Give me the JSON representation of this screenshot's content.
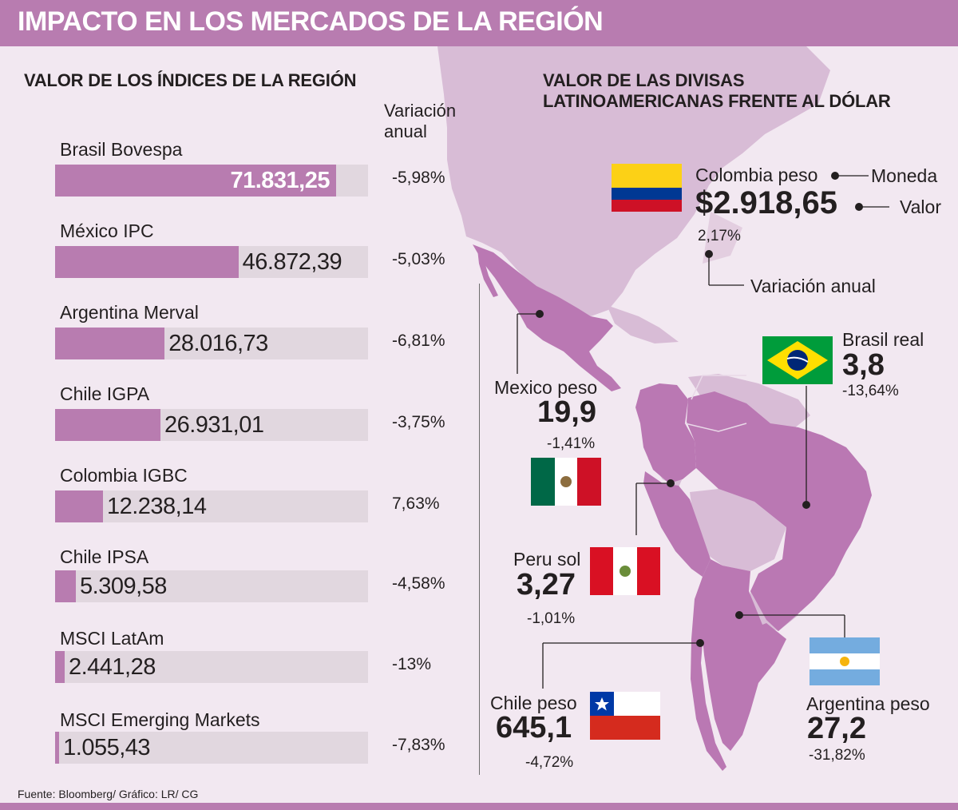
{
  "title": "IMPACTO EN LOS MERCADOS DE LA REGIÓN",
  "indices_section_title": "VALOR DE LOS ÍNDICES DE LA REGIÓN",
  "variation_header": [
    "Variación",
    "anual"
  ],
  "currencies_section_title": [
    "VALOR DE LAS DIVISAS",
    "LATINOAMERICANAS FRENTE AL DÓLAR"
  ],
  "source": "Fuente: Bloomberg/ Gráfico: LR/ CG",
  "colors": {
    "accent": "#b87cb0",
    "bar_track": "#e1d7df",
    "background": "#f2e8f1",
    "map_land": "#d8bcd6",
    "map_highlight": "#ba78b3"
  },
  "chart_data": [
    {
      "type": "bar",
      "orientation": "horizontal",
      "title": "VALOR DE LOS ÍNDICES DE LA REGIÓN",
      "categories": [
        "Brasil Bovespa",
        "México IPC",
        "Argentina Merval",
        "Chile IGPA",
        "Colombia IGBC",
        "Chile IPSA",
        "MSCI LatAm",
        "MSCI Emerging Markets"
      ],
      "values": [
        71831.25,
        46872.39,
        28016.73,
        26931.01,
        12238.14,
        5309.58,
        2441.28,
        1055.43
      ],
      "value_labels": [
        "71.831,25",
        "46.872,39",
        "28.016,73",
        "26.931,01",
        "12.238,14",
        "5.309,58",
        "2.441,28",
        "1.055,43"
      ],
      "annual_variation": [
        "-5,98%",
        "-5,03%",
        "-6,81%",
        "-3,75%",
        "7,63%",
        "-4,58%",
        "-13%",
        "-7,83%"
      ],
      "xlim": [
        0,
        80000
      ],
      "grid": false
    },
    {
      "type": "table",
      "title": [
        "VALOR DE LAS DIVISAS",
        "LATINOAMERICANAS FRENTE AL DÓLAR"
      ],
      "legend": {
        "currency": "Moneda",
        "value": "Valor",
        "variation": "Variación anual"
      },
      "rows": [
        {
          "currency": "Colombia peso",
          "value": "$2.918,65",
          "variation": "2,17%",
          "flag": "colombia-flag"
        },
        {
          "currency": "Brasil real",
          "value": "3,8",
          "variation": "-13,64%",
          "flag": "brazil-flag"
        },
        {
          "currency": "Mexico peso",
          "value": "19,9",
          "variation": "-1,41%",
          "flag": "mexico-flag"
        },
        {
          "currency": "Peru sol",
          "value": "3,27",
          "variation": "-1,01%",
          "flag": "peru-flag"
        },
        {
          "currency": "Chile peso",
          "value": "645,1",
          "variation": "-4,72%",
          "flag": "chile-flag"
        },
        {
          "currency": "Argentina peso",
          "value": "27,2",
          "variation": "-31,82%",
          "flag": "argentina-flag"
        }
      ]
    }
  ]
}
